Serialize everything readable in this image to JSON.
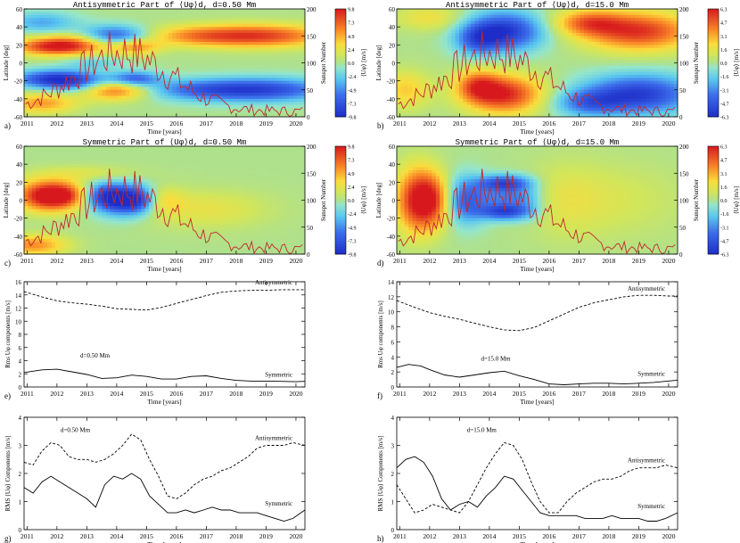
{
  "heatmaps": [
    {
      "id": "a",
      "panel_label": "a)",
      "title": "Antisymmetric Part of ⟨Uφ⟩d, d=0.50 Mm",
      "xlabel": "Time [years]",
      "ylabel": "Latitude [deg]",
      "ylabel_right": "Sunspot Number",
      "colorbar_label": "⟨Uφ⟩ [m/s]",
      "colorbar_ticks": [
        "9.8",
        "7.3",
        "4.9",
        "2.4",
        "0.0",
        "-2.4",
        "-4.9",
        "-7.3",
        "-9.8"
      ],
      "lat_ticks": [
        "60",
        "40",
        "20",
        "0",
        "-20",
        "-40",
        "-60"
      ],
      "ssn_ticks": [
        "200",
        "150",
        "100",
        "50",
        "0"
      ]
    },
    {
      "id": "b",
      "panel_label": "b)",
      "title": "Antisymmetric Part of ⟨Uφ⟩d, d=15.0 Mm",
      "xlabel": "Time [years]",
      "ylabel": "Latitude [deg]",
      "ylabel_right": "Sunspot Number",
      "colorbar_label": "⟨Uφ⟩ [m/s]",
      "colorbar_ticks": [
        "6.3",
        "4.7",
        "3.1",
        "1.6",
        "0.0",
        "-1.6",
        "-3.1",
        "-4.7",
        "-6.3"
      ],
      "lat_ticks": [
        "60",
        "40",
        "20",
        "0",
        "-20",
        "-40",
        "-60"
      ],
      "ssn_ticks": [
        "200",
        "150",
        "100",
        "50",
        "0"
      ]
    },
    {
      "id": "c",
      "panel_label": "c)",
      "title": "Symmetric Part of ⟨Uφ⟩d, d=0.50 Mm",
      "xlabel": "Time [years]",
      "ylabel": "Latitude [deg]",
      "ylabel_right": "Sunspot Number",
      "colorbar_label": "⟨Uφ⟩ [m/s]",
      "colorbar_ticks": [
        "9.8",
        "7.3",
        "4.9",
        "2.4",
        "0.0",
        "-2.4",
        "-4.9",
        "-7.3",
        "-9.8"
      ],
      "lat_ticks": [
        "60",
        "40",
        "20",
        "0",
        "-20",
        "-40",
        "-60"
      ],
      "ssn_ticks": [
        "200",
        "150",
        "100",
        "50",
        "0"
      ]
    },
    {
      "id": "d",
      "panel_label": "d)",
      "title": "Symmetric Part of ⟨Uφ⟩d, d=15.0 Mm",
      "xlabel": "Time [years]",
      "ylabel": "Latitude [deg]",
      "ylabel_right": "Sunspot Number",
      "colorbar_label": "⟨Uφ⟩ [m/s]",
      "colorbar_ticks": [
        "6.3",
        "4.7",
        "3.1",
        "1.6",
        "0.0",
        "-1.6",
        "-3.1",
        "-4.7",
        "-6.3"
      ],
      "lat_ticks": [
        "60",
        "40",
        "20",
        "0",
        "-20",
        "-40",
        "-60"
      ],
      "ssn_ticks": [
        "200",
        "150",
        "100",
        "50",
        "0"
      ]
    }
  ],
  "year_ticks": [
    "2011",
    "2012",
    "2013",
    "2014",
    "2015",
    "2016",
    "2017",
    "2018",
    "2019",
    "2020"
  ],
  "colors": {
    "sunspot_line": "#c0282e",
    "colormap": "red-yellow-green-cyan-blue"
  },
  "chart_data": [
    {
      "type": "line",
      "panel": "e)",
      "xlabel": "Time [years]",
      "ylabel": "Rms Uφ components [m/s]",
      "annotation": "d=0.50 Mm",
      "ylim": [
        0,
        16
      ],
      "xlim": [
        2010.9,
        2020.3
      ],
      "yticks": [
        "0",
        "2",
        "4",
        "6",
        "8",
        "10",
        "12",
        "14",
        "16"
      ],
      "series": [
        {
          "name": "Antisymmetric",
          "style": "dashed",
          "x": [
            2010.9,
            2011.5,
            2012,
            2012.5,
            2013,
            2013.5,
            2014,
            2014.5,
            2015,
            2015.5,
            2016,
            2016.5,
            2017,
            2017.5,
            2018,
            2018.5,
            2019,
            2019.5,
            2020,
            2020.3
          ],
          "y": [
            14.5,
            13.7,
            13.1,
            12.8,
            12.6,
            12.3,
            11.9,
            11.8,
            11.7,
            12.1,
            12.7,
            13.3,
            13.9,
            14.4,
            14.6,
            14.7,
            14.7,
            14.8,
            14.8,
            14.8
          ]
        },
        {
          "name": "Symmetric",
          "style": "solid",
          "x": [
            2010.9,
            2011.5,
            2012,
            2012.5,
            2013,
            2013.5,
            2014,
            2014.5,
            2015,
            2015.5,
            2016,
            2016.5,
            2017,
            2017.5,
            2018,
            2018.5,
            2019,
            2019.5,
            2020,
            2020.3
          ],
          "y": [
            2.2,
            2.6,
            2.7,
            2.3,
            1.9,
            1.3,
            1.4,
            1.8,
            1.6,
            1.2,
            1.2,
            1.6,
            1.7,
            1.3,
            1.0,
            0.9,
            0.9,
            0.85,
            0.8,
            0.85
          ]
        }
      ]
    },
    {
      "type": "line",
      "panel": "f)",
      "xlabel": "Time [years]",
      "ylabel": "Rms Uφ components [m/s]",
      "annotation": "d=15.0 Mm",
      "ylim": [
        0,
        14
      ],
      "xlim": [
        2010.9,
        2020.3
      ],
      "yticks": [
        "0",
        "2",
        "4",
        "6",
        "8",
        "10",
        "12",
        "14"
      ],
      "series": [
        {
          "name": "Antisymmetric",
          "style": "dashed",
          "x": [
            2010.9,
            2011.5,
            2012,
            2012.5,
            2013,
            2013.5,
            2014,
            2014.5,
            2015,
            2015.5,
            2016,
            2016.5,
            2017,
            2017.5,
            2018,
            2018.5,
            2019,
            2019.5,
            2020,
            2020.3
          ],
          "y": [
            11.5,
            10.6,
            9.9,
            9.4,
            9.0,
            8.5,
            8.0,
            7.6,
            7.5,
            7.9,
            8.8,
            9.7,
            10.6,
            11.2,
            11.6,
            12.0,
            12.2,
            12.2,
            12.1,
            12.1
          ]
        },
        {
          "name": "Symmetric",
          "style": "solid",
          "x": [
            2010.9,
            2011.3,
            2011.7,
            2012,
            2012.5,
            2013,
            2013.5,
            2014,
            2014.5,
            2015,
            2015.5,
            2016,
            2016.5,
            2017,
            2017.5,
            2018,
            2018.5,
            2019,
            2019.5,
            2020,
            2020.3
          ],
          "y": [
            2.6,
            3.0,
            2.8,
            2.3,
            1.6,
            1.3,
            1.6,
            1.9,
            2.1,
            1.5,
            1.0,
            0.4,
            0.3,
            0.4,
            0.5,
            0.5,
            0.4,
            0.5,
            0.6,
            0.8,
            0.9
          ]
        }
      ]
    },
    {
      "type": "line",
      "panel": "g)",
      "xlabel": "Time [years]",
      "ylabel": "RMS ⟨Uφ⟩ Components [m/s]",
      "annotation": "d=0.50 Mm",
      "ylim": [
        0,
        4
      ],
      "xlim": [
        2010.9,
        2020.3
      ],
      "yticks": [
        "0",
        "1",
        "2",
        "3",
        "4"
      ],
      "series": [
        {
          "name": "Antisymmetric",
          "style": "dashed",
          "x": [
            2010.9,
            2011.2,
            2011.5,
            2011.8,
            2012.1,
            2012.4,
            2012.7,
            2013.0,
            2013.3,
            2013.6,
            2013.9,
            2014.2,
            2014.5,
            2014.8,
            2015.1,
            2015.4,
            2015.7,
            2016.0,
            2016.3,
            2016.6,
            2016.9,
            2017.2,
            2017.5,
            2017.8,
            2018.1,
            2018.4,
            2018.7,
            2019.0,
            2019.3,
            2019.6,
            2019.9,
            2020.3
          ],
          "y": [
            2.4,
            2.3,
            2.8,
            3.1,
            3.0,
            2.6,
            2.5,
            2.5,
            2.4,
            2.5,
            2.7,
            3.0,
            3.4,
            3.2,
            2.5,
            1.9,
            1.2,
            1.1,
            1.3,
            1.6,
            1.8,
            1.9,
            2.1,
            2.2,
            2.4,
            2.6,
            2.9,
            3.0,
            3.0,
            3.0,
            3.1,
            3.0
          ]
        },
        {
          "name": "Symmetric",
          "style": "solid",
          "x": [
            2010.9,
            2011.2,
            2011.5,
            2011.8,
            2012.1,
            2012.4,
            2012.7,
            2013.0,
            2013.3,
            2013.6,
            2013.9,
            2014.2,
            2014.5,
            2014.8,
            2015.1,
            2015.4,
            2015.7,
            2016.0,
            2016.3,
            2016.6,
            2016.9,
            2017.2,
            2017.5,
            2017.8,
            2018.1,
            2018.4,
            2018.7,
            2019.0,
            2019.3,
            2019.6,
            2019.9,
            2020.3
          ],
          "y": [
            1.5,
            1.3,
            1.7,
            1.9,
            1.7,
            1.5,
            1.3,
            1.1,
            0.8,
            1.6,
            1.9,
            1.8,
            2.0,
            1.8,
            1.2,
            0.9,
            0.6,
            0.6,
            0.7,
            0.6,
            0.7,
            0.8,
            0.7,
            0.7,
            0.6,
            0.6,
            0.6,
            0.5,
            0.4,
            0.3,
            0.4,
            0.7
          ]
        }
      ]
    },
    {
      "type": "line",
      "panel": "h)",
      "xlabel": "Time [years]",
      "ylabel": "RMS ⟨Uφ⟩ Components [m/s]",
      "annotation": "d=15.0 Mm",
      "ylim": [
        0,
        4
      ],
      "xlim": [
        2010.9,
        2020.3
      ],
      "yticks": [
        "0",
        "1",
        "2",
        "3",
        "4"
      ],
      "series": [
        {
          "name": "Antisymmetric",
          "style": "dashed",
          "x": [
            2010.9,
            2011.2,
            2011.5,
            2011.8,
            2012.1,
            2012.4,
            2012.7,
            2013.0,
            2013.3,
            2013.6,
            2013.9,
            2014.2,
            2014.5,
            2014.8,
            2015.1,
            2015.4,
            2015.7,
            2016.0,
            2016.3,
            2016.6,
            2016.9,
            2017.2,
            2017.5,
            2017.8,
            2018.1,
            2018.4,
            2018.7,
            2019.0,
            2019.3,
            2019.6,
            2019.9,
            2020.3
          ],
          "y": [
            1.6,
            1.1,
            0.6,
            0.7,
            0.9,
            0.8,
            0.7,
            0.6,
            1.0,
            1.6,
            2.2,
            2.7,
            3.1,
            3.0,
            2.5,
            1.7,
            1.0,
            0.6,
            0.6,
            1.0,
            1.3,
            1.5,
            1.7,
            1.8,
            1.8,
            1.9,
            2.1,
            2.2,
            2.2,
            2.2,
            2.3,
            2.2
          ]
        },
        {
          "name": "Symmetric",
          "style": "solid",
          "x": [
            2010.9,
            2011.2,
            2011.5,
            2011.8,
            2012.1,
            2012.4,
            2012.7,
            2013.0,
            2013.3,
            2013.6,
            2013.9,
            2014.2,
            2014.5,
            2014.8,
            2015.1,
            2015.4,
            2015.7,
            2016.0,
            2016.3,
            2016.6,
            2016.9,
            2017.2,
            2017.5,
            2017.8,
            2018.1,
            2018.4,
            2018.7,
            2019.0,
            2019.3,
            2019.6,
            2019.9,
            2020.3
          ],
          "y": [
            2.2,
            2.5,
            2.6,
            2.4,
            1.9,
            1.1,
            0.7,
            0.9,
            1.0,
            0.8,
            1.2,
            1.5,
            1.9,
            1.8,
            1.4,
            1.0,
            0.6,
            0.5,
            0.5,
            0.5,
            0.5,
            0.4,
            0.4,
            0.4,
            0.5,
            0.4,
            0.4,
            0.4,
            0.3,
            0.3,
            0.4,
            0.6
          ]
        }
      ]
    }
  ]
}
